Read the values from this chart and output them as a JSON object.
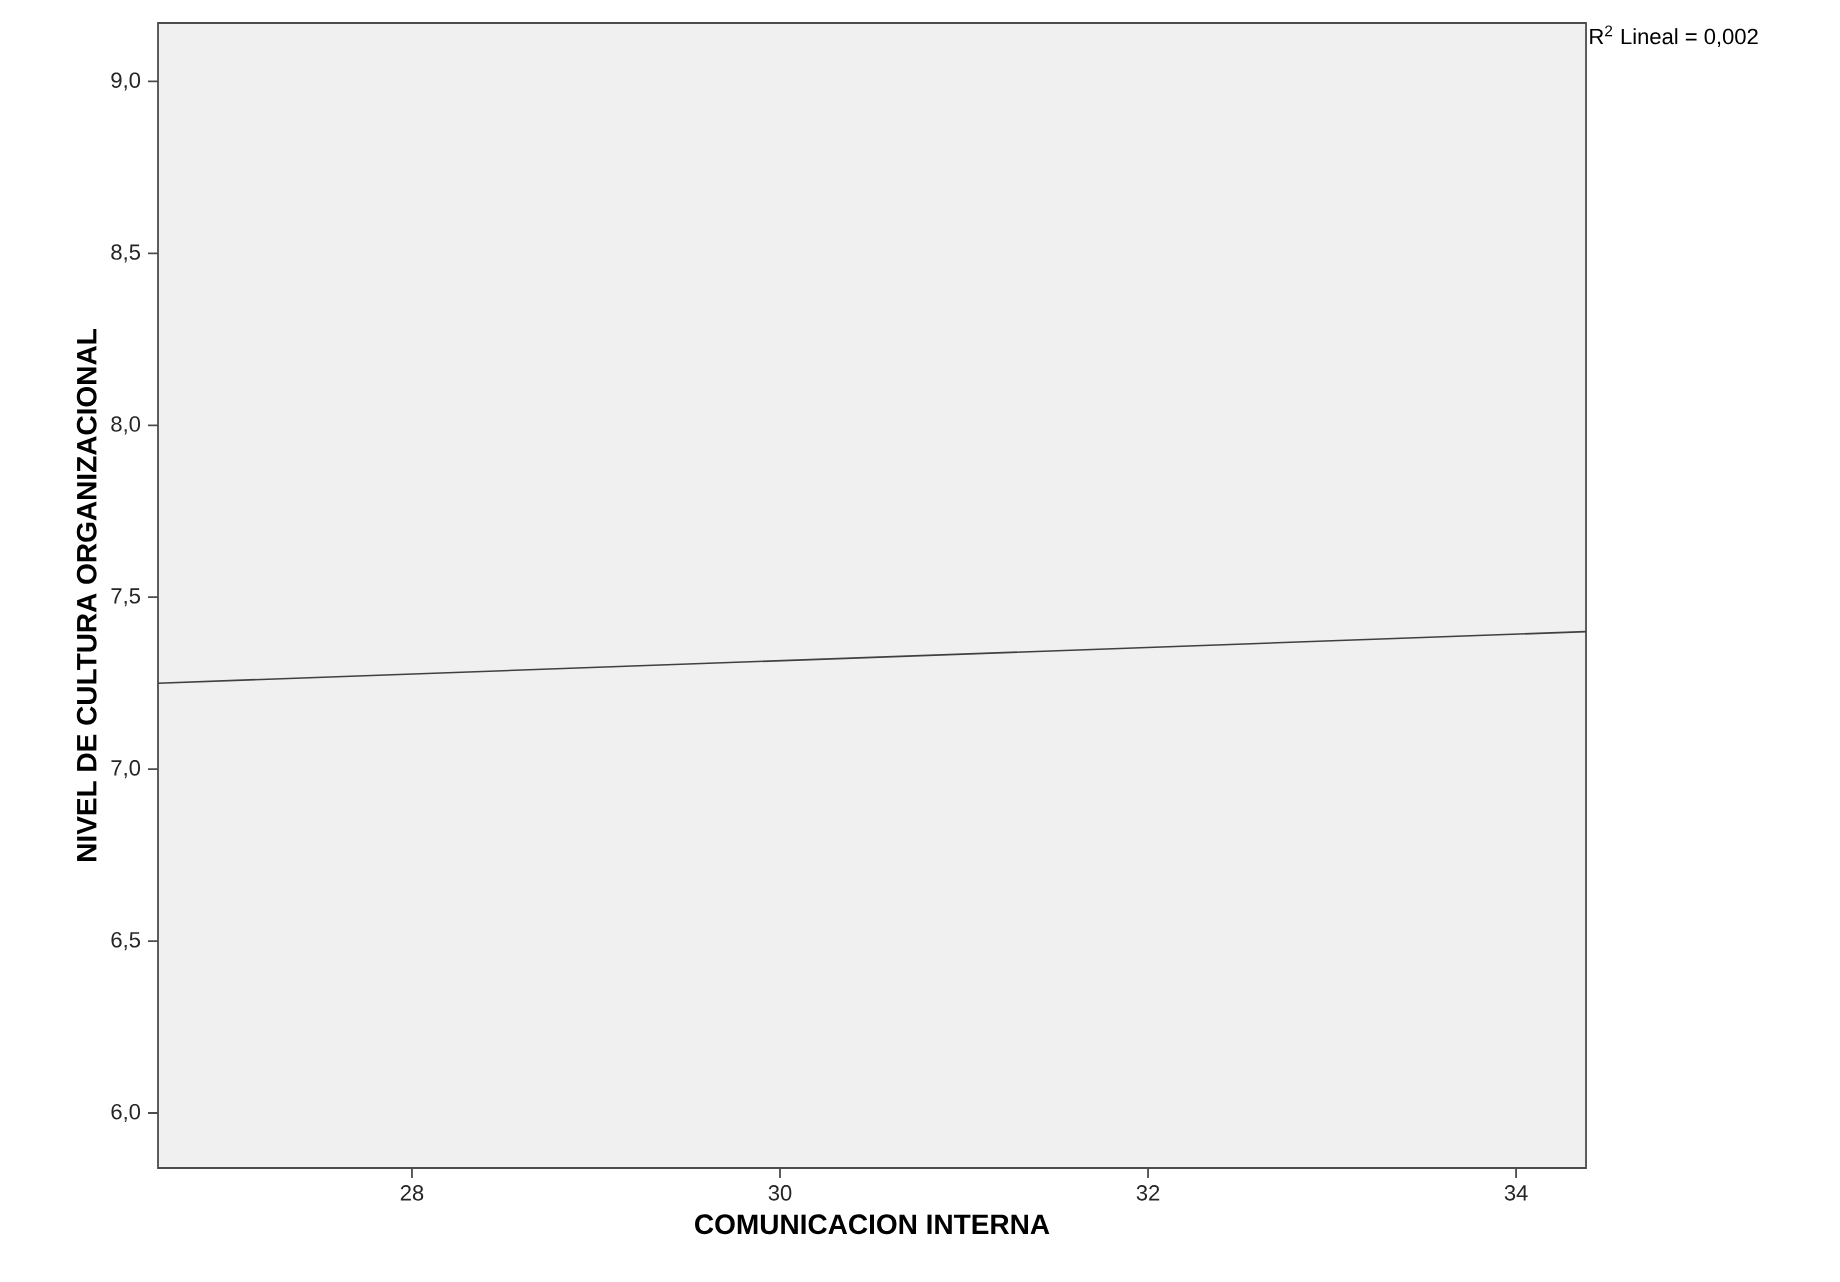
{
  "chart_data": {
    "type": "line",
    "xlabel": "COMUNICACION INTERNA",
    "ylabel": "NIVEL DE CULTURA ORGANIZACIONAL",
    "annotations": [
      "R$^{2}$ Lineal = 0,002"
    ],
    "x": [
      26.62,
      34.38
    ],
    "series": [
      {
        "color": "#404040",
        "values": [
          7.25,
          7.4
        ]
      }
    ],
    "xlim": [
      26.62,
      34.38
    ],
    "xticks": [
      28,
      30,
      32,
      34
    ],
    "ylim": [
      5.84,
      9.17
    ],
    "yticks": [
      {
        "value": 6.0,
        "label": "6,0"
      },
      {
        "value": 6.5,
        "label": "6,5"
      },
      {
        "value": 7.0,
        "label": "7,0"
      },
      {
        "value": 7.5,
        "label": "7,5"
      },
      {
        "value": 8.0,
        "label": "8,0"
      },
      {
        "value": 8.5,
        "label": "8,5"
      },
      {
        "value": 9.0,
        "label": "9,0"
      }
    ]
  }
}
